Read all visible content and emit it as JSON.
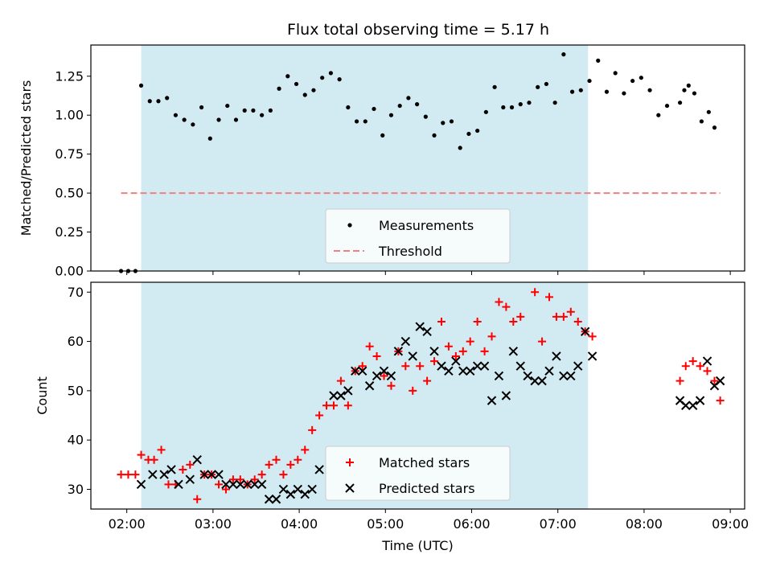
{
  "title": "Flux total observing time = 5.17 h",
  "colors": {
    "span": "#add8e6",
    "measurement": "#000000",
    "threshold": "#f08080",
    "matched": "#ff0000",
    "predicted": "#000000"
  },
  "chart_data": [
    {
      "type": "scatter",
      "ylabel": "Matched/Predicted stars",
      "ylim": [
        0,
        1.45
      ],
      "yticks": [
        0.0,
        0.25,
        0.5,
        0.75,
        1.0,
        1.25
      ],
      "ytick_labels": [
        "0.00",
        "0.25",
        "0.50",
        "0.75",
        "1.00",
        "1.25"
      ],
      "shaded_span": [
        "02:10",
        "07:21"
      ],
      "legend": {
        "placement": "lower center",
        "entries": [
          "Measurements",
          "Threshold"
        ]
      },
      "threshold": {
        "name": "Threshold",
        "value": 0.5,
        "x_range": [
          "01:56",
          "08:53"
        ]
      },
      "series": [
        {
          "name": "Measurements",
          "marker": "dot",
          "points": [
            [
              "01:56",
              0.0
            ],
            [
              "02:01",
              0.0
            ],
            [
              "02:06",
              0.0
            ],
            [
              "02:10",
              1.19
            ],
            [
              "02:16",
              1.09
            ],
            [
              "02:22",
              1.09
            ],
            [
              "02:28",
              1.11
            ],
            [
              "02:34",
              1.0
            ],
            [
              "02:40",
              0.97
            ],
            [
              "02:46",
              0.94
            ],
            [
              "02:52",
              1.05
            ],
            [
              "02:58",
              0.85
            ],
            [
              "03:04",
              0.97
            ],
            [
              "03:10",
              1.06
            ],
            [
              "03:16",
              0.97
            ],
            [
              "03:22",
              1.03
            ],
            [
              "03:28",
              1.03
            ],
            [
              "03:34",
              1.0
            ],
            [
              "03:40",
              1.03
            ],
            [
              "03:46",
              1.17
            ],
            [
              "03:52",
              1.25
            ],
            [
              "03:58",
              1.2
            ],
            [
              "04:04",
              1.13
            ],
            [
              "04:10",
              1.16
            ],
            [
              "04:16",
              1.24
            ],
            [
              "04:22",
              1.27
            ],
            [
              "04:28",
              1.23
            ],
            [
              "04:34",
              1.05
            ],
            [
              "04:40",
              0.96
            ],
            [
              "04:46",
              0.96
            ],
            [
              "04:52",
              1.04
            ],
            [
              "04:58",
              0.87
            ],
            [
              "05:04",
              1.0
            ],
            [
              "05:10",
              1.06
            ],
            [
              "05:16",
              1.11
            ],
            [
              "05:22",
              1.07
            ],
            [
              "05:28",
              0.99
            ],
            [
              "05:34",
              0.87
            ],
            [
              "05:40",
              0.95
            ],
            [
              "05:46",
              0.96
            ],
            [
              "05:52",
              0.79
            ],
            [
              "05:58",
              0.88
            ],
            [
              "06:04",
              0.9
            ],
            [
              "06:10",
              1.02
            ],
            [
              "06:16",
              1.18
            ],
            [
              "06:22",
              1.05
            ],
            [
              "06:28",
              1.05
            ],
            [
              "06:34",
              1.07
            ],
            [
              "06:40",
              1.08
            ],
            [
              "06:46",
              1.18
            ],
            [
              "06:52",
              1.2
            ],
            [
              "06:58",
              1.08
            ],
            [
              "07:04",
              1.39
            ],
            [
              "07:10",
              1.15
            ],
            [
              "07:16",
              1.16
            ],
            [
              "07:22",
              1.22
            ],
            [
              "07:28",
              1.35
            ],
            [
              "07:34",
              1.15
            ],
            [
              "07:40",
              1.27
            ],
            [
              "07:46",
              1.14
            ],
            [
              "07:52",
              1.22
            ],
            [
              "07:58",
              1.24
            ],
            [
              "08:04",
              1.16
            ],
            [
              "08:10",
              1.0
            ],
            [
              "08:16",
              1.06
            ],
            [
              "08:25",
              1.08
            ],
            [
              "08:28",
              1.16
            ],
            [
              "08:31",
              1.19
            ],
            [
              "08:35",
              1.14
            ],
            [
              "08:40",
              0.96
            ],
            [
              "08:45",
              1.02
            ],
            [
              "08:49",
              0.92
            ]
          ]
        }
      ]
    },
    {
      "type": "scatter",
      "xlabel": "Time (UTC)",
      "ylabel": "Count",
      "ylim": [
        26,
        72
      ],
      "yticks": [
        30,
        40,
        50,
        60,
        70
      ],
      "xlim": [
        "01:35",
        "09:10"
      ],
      "xtick_labels": [
        "02:00",
        "03:00",
        "04:00",
        "05:00",
        "06:00",
        "07:00",
        "08:00",
        "09:00"
      ],
      "shaded_span": [
        "02:10",
        "07:21"
      ],
      "legend": {
        "placement": "lower center",
        "entries": [
          "Matched stars",
          "Predicted stars"
        ]
      },
      "series": [
        {
          "name": "Matched stars",
          "marker": "plus",
          "points": [
            [
              "01:56",
              33
            ],
            [
              "02:01",
              33
            ],
            [
              "02:06",
              33
            ],
            [
              "02:10",
              37
            ],
            [
              "02:15",
              36
            ],
            [
              "02:19",
              36
            ],
            [
              "02:24",
              38
            ],
            [
              "02:29",
              31
            ],
            [
              "02:34",
              31
            ],
            [
              "02:39",
              34
            ],
            [
              "02:44",
              35
            ],
            [
              "02:49",
              28
            ],
            [
              "02:54",
              33
            ],
            [
              "02:59",
              33
            ],
            [
              "03:04",
              31
            ],
            [
              "03:09",
              30
            ],
            [
              "03:14",
              32
            ],
            [
              "03:19",
              32
            ],
            [
              "03:24",
              31
            ],
            [
              "03:29",
              32
            ],
            [
              "03:34",
              33
            ],
            [
              "03:39",
              35
            ],
            [
              "03:44",
              36
            ],
            [
              "03:49",
              33
            ],
            [
              "03:54",
              35
            ],
            [
              "03:59",
              36
            ],
            [
              "04:04",
              38
            ],
            [
              "04:09",
              42
            ],
            [
              "04:14",
              45
            ],
            [
              "04:19",
              47
            ],
            [
              "04:24",
              47
            ],
            [
              "04:29",
              52
            ],
            [
              "04:34",
              47
            ],
            [
              "04:39",
              54
            ],
            [
              "04:44",
              55
            ],
            [
              "04:49",
              59
            ],
            [
              "04:54",
              57
            ],
            [
              "04:59",
              53
            ],
            [
              "05:04",
              51
            ],
            [
              "05:09",
              58
            ],
            [
              "05:14",
              55
            ],
            [
              "05:19",
              50
            ],
            [
              "05:24",
              55
            ],
            [
              "05:29",
              52
            ],
            [
              "05:34",
              56
            ],
            [
              "05:39",
              64
            ],
            [
              "05:44",
              59
            ],
            [
              "05:49",
              57
            ],
            [
              "05:54",
              58
            ],
            [
              "05:59",
              60
            ],
            [
              "06:04",
              64
            ],
            [
              "06:09",
              58
            ],
            [
              "06:14",
              61
            ],
            [
              "06:19",
              68
            ],
            [
              "06:24",
              67
            ],
            [
              "06:29",
              64
            ],
            [
              "06:34",
              65
            ],
            [
              "06:44",
              70
            ],
            [
              "06:49",
              60
            ],
            [
              "06:54",
              69
            ],
            [
              "06:59",
              65
            ],
            [
              "07:04",
              65
            ],
            [
              "07:09",
              66
            ],
            [
              "07:14",
              64
            ],
            [
              "07:19",
              62
            ],
            [
              "07:24",
              61
            ],
            [
              "08:25",
              52
            ],
            [
              "08:29",
              55
            ],
            [
              "08:34",
              56
            ],
            [
              "08:39",
              55
            ],
            [
              "08:44",
              54
            ],
            [
              "08:49",
              52
            ],
            [
              "08:53",
              48
            ]
          ]
        },
        {
          "name": "Predicted stars",
          "marker": "cross",
          "points": [
            [
              "02:10",
              31
            ],
            [
              "02:18",
              33
            ],
            [
              "02:26",
              33
            ],
            [
              "02:31",
              34
            ],
            [
              "02:36",
              31
            ],
            [
              "02:44",
              32
            ],
            [
              "02:49",
              36
            ],
            [
              "02:54",
              33
            ],
            [
              "02:59",
              33
            ],
            [
              "03:04",
              33
            ],
            [
              "03:09",
              31
            ],
            [
              "03:14",
              31
            ],
            [
              "03:19",
              31
            ],
            [
              "03:24",
              31
            ],
            [
              "03:29",
              31
            ],
            [
              "03:34",
              31
            ],
            [
              "03:39",
              28
            ],
            [
              "03:44",
              28
            ],
            [
              "03:49",
              30
            ],
            [
              "03:54",
              29
            ],
            [
              "03:59",
              30
            ],
            [
              "04:04",
              29
            ],
            [
              "04:09",
              30
            ],
            [
              "04:14",
              34
            ],
            [
              "04:24",
              49
            ],
            [
              "04:29",
              49
            ],
            [
              "04:34",
              50
            ],
            [
              "04:39",
              54
            ],
            [
              "04:44",
              54
            ],
            [
              "04:49",
              51
            ],
            [
              "04:54",
              53
            ],
            [
              "04:59",
              54
            ],
            [
              "05:04",
              53
            ],
            [
              "05:09",
              58
            ],
            [
              "05:14",
              60
            ],
            [
              "05:19",
              57
            ],
            [
              "05:24",
              63
            ],
            [
              "05:29",
              62
            ],
            [
              "05:34",
              58
            ],
            [
              "05:39",
              55
            ],
            [
              "05:44",
              54
            ],
            [
              "05:49",
              56
            ],
            [
              "05:54",
              54
            ],
            [
              "05:59",
              54
            ],
            [
              "06:04",
              55
            ],
            [
              "06:09",
              55
            ],
            [
              "06:14",
              48
            ],
            [
              "06:19",
              53
            ],
            [
              "06:24",
              49
            ],
            [
              "06:29",
              58
            ],
            [
              "06:34",
              55
            ],
            [
              "06:39",
              53
            ],
            [
              "06:44",
              52
            ],
            [
              "06:49",
              52
            ],
            [
              "06:54",
              54
            ],
            [
              "06:59",
              57
            ],
            [
              "07:04",
              53
            ],
            [
              "07:09",
              53
            ],
            [
              "07:14",
              55
            ],
            [
              "07:19",
              62
            ],
            [
              "07:24",
              57
            ],
            [
              "08:25",
              48
            ],
            [
              "08:29",
              47
            ],
            [
              "08:34",
              47
            ],
            [
              "08:39",
              48
            ],
            [
              "08:44",
              56
            ],
            [
              "08:49",
              51
            ],
            [
              "08:53",
              52
            ]
          ]
        }
      ]
    }
  ]
}
